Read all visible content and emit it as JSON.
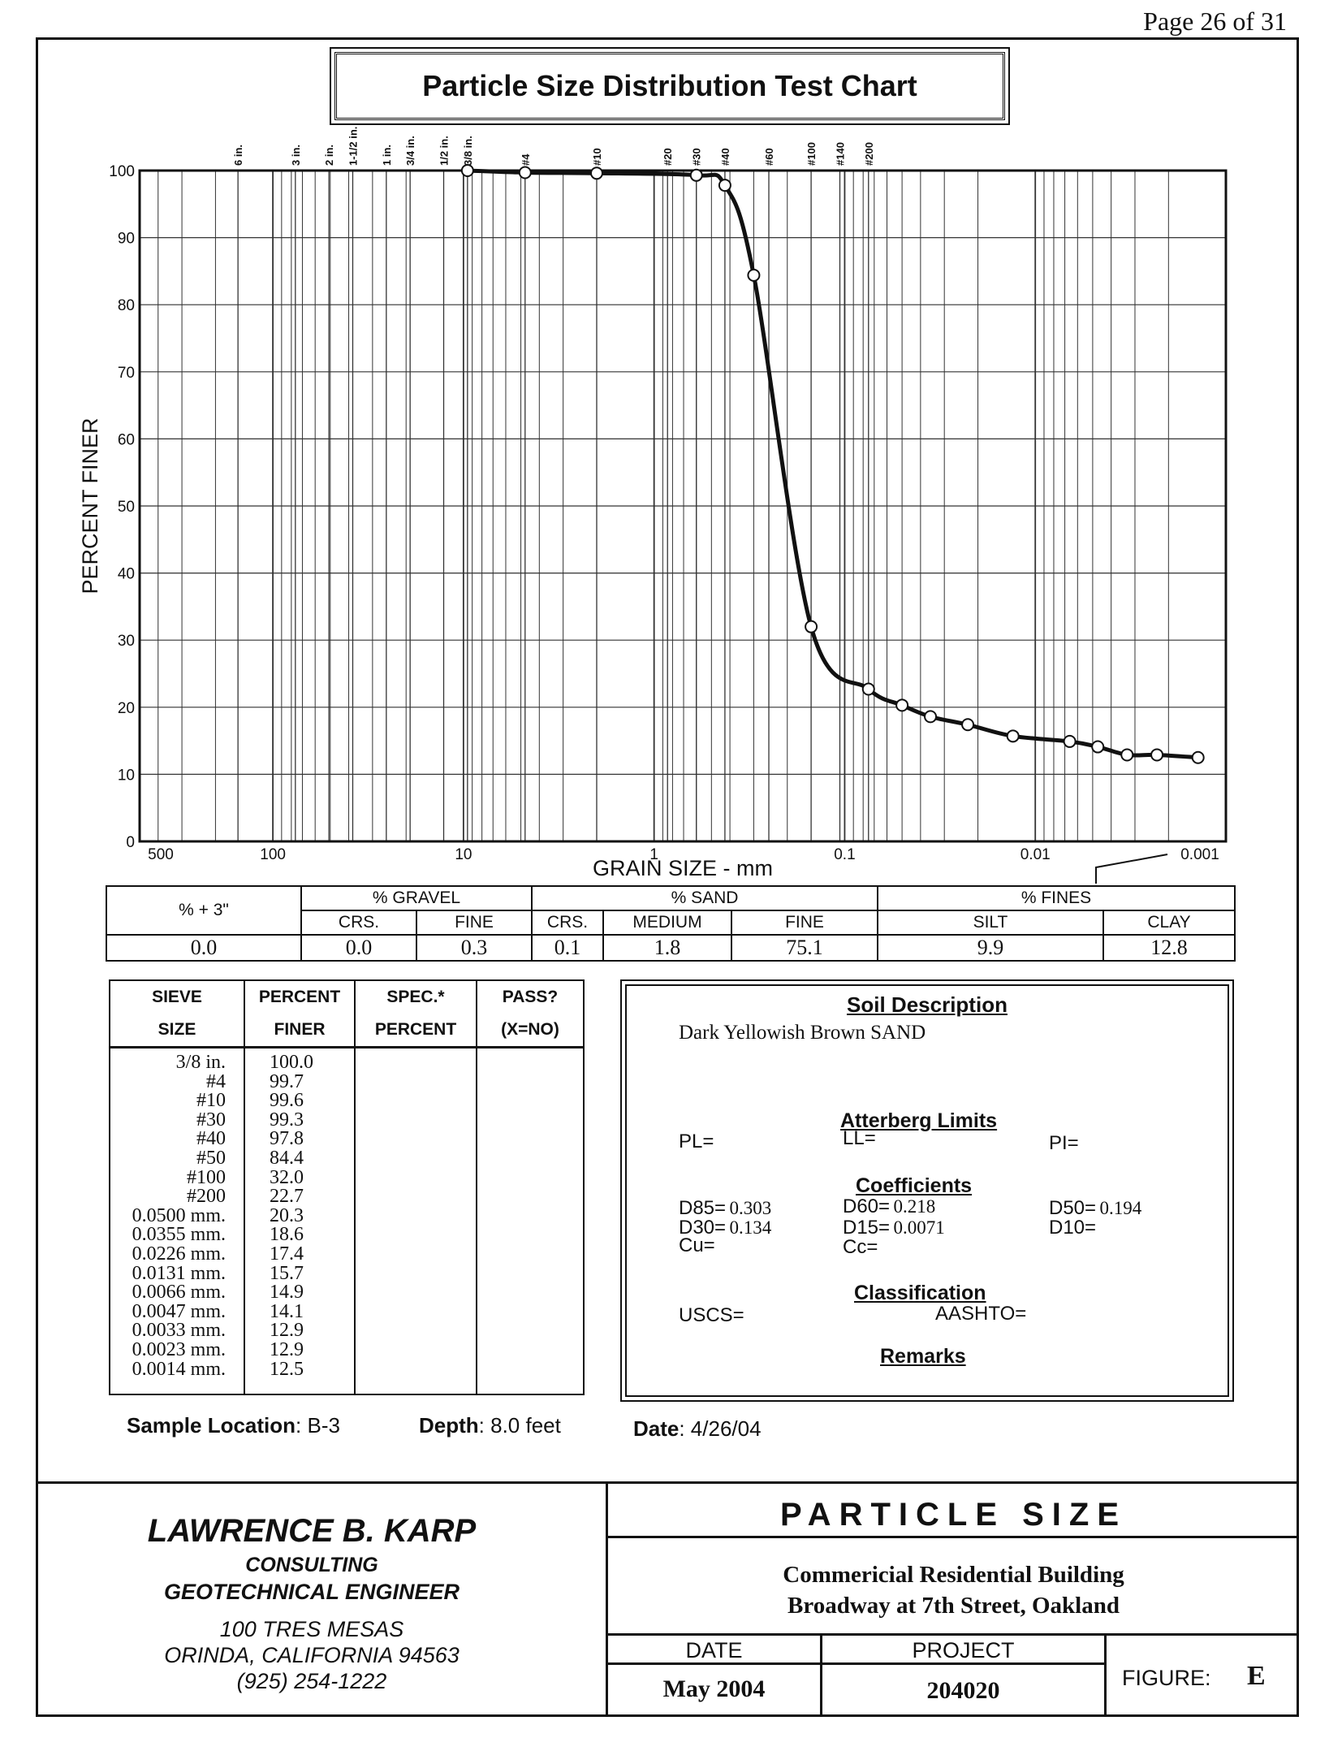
{
  "page": "Page 26 of 31",
  "chart_title": "Particle Size Distribution Test Chart",
  "chart_data": {
    "type": "line",
    "title": "Particle Size Distribution Test Chart",
    "xlabel": "GRAIN SIZE - mm",
    "ylabel": "PERCENT FINER",
    "x_scale": "log",
    "x_reversed": true,
    "xlim": [
      500,
      0.001
    ],
    "ylim": [
      0,
      100
    ],
    "x_tick_labels": [
      "500",
      "100",
      "10",
      "1",
      "0.1",
      "0.01",
      "0.001"
    ],
    "x_ticks": [
      500,
      100,
      10,
      1,
      0.1,
      0.01,
      0.001
    ],
    "y_ticks": [
      0,
      10,
      20,
      30,
      40,
      50,
      60,
      70,
      80,
      90,
      100
    ],
    "sieve_labels": [
      {
        "label": "6 in.",
        "x": 152.4
      },
      {
        "label": "3 in.",
        "x": 76.2
      },
      {
        "label": "2 in.",
        "x": 50.8
      },
      {
        "label": "1-1/2 in.",
        "x": 38.1
      },
      {
        "label": "1 in.",
        "x": 25.4
      },
      {
        "label": "3/4 in.",
        "x": 19.05
      },
      {
        "label": "1/2 in.",
        "x": 12.7
      },
      {
        "label": "3/8 in.",
        "x": 9.525
      },
      {
        "label": "#4",
        "x": 4.75
      },
      {
        "label": "#10",
        "x": 2.0
      },
      {
        "label": "#20",
        "x": 0.85
      },
      {
        "label": "#30",
        "x": 0.6
      },
      {
        "label": "#40",
        "x": 0.425
      },
      {
        "label": "#60",
        "x": 0.25
      },
      {
        "label": "#100",
        "x": 0.15
      },
      {
        "label": "#140",
        "x": 0.106
      },
      {
        "label": "#200",
        "x": 0.075
      }
    ],
    "series": [
      {
        "x": [
          9.525,
          4.75,
          2.0,
          0.6,
          0.425,
          0.3,
          0.15,
          0.075,
          0.05,
          0.0355,
          0.0226,
          0.0131,
          0.0066,
          0.0047,
          0.0033,
          0.0023,
          0.0014
        ],
        "y": [
          100.0,
          99.7,
          99.6,
          99.3,
          97.8,
          84.4,
          32.0,
          22.7,
          20.3,
          18.6,
          17.4,
          15.7,
          14.9,
          14.1,
          12.9,
          12.9,
          12.5
        ]
      }
    ]
  },
  "fractions": {
    "headers": {
      "plus3": "% + 3\"",
      "gravel": "% GRAVEL",
      "sand": "% SAND",
      "fines": "% FINES"
    },
    "sub": {
      "crs": "CRS.",
      "fine": "FINE",
      "crs2": "CRS.",
      "medium": "MEDIUM",
      "fine2": "FINE",
      "silt": "SILT",
      "clay": "CLAY"
    },
    "values": {
      "plus3": "0.0",
      "gravel_crs": "0.0",
      "gravel_fine": "0.3",
      "sand_crs": "0.1",
      "sand_medium": "1.8",
      "sand_fine": "75.1",
      "silt": "9.9",
      "clay": "12.8"
    }
  },
  "sieve_table": {
    "h1": [
      "SIEVE",
      "PERCENT",
      "SPEC.*",
      "PASS?"
    ],
    "h2": [
      "SIZE",
      "FINER",
      "PERCENT",
      "(X=NO)"
    ],
    "sizes": "3/8 in.\n#4\n#10\n#30\n#40\n#50\n#100\n#200\n0.0500 mm.\n0.0355 mm.\n0.0226 mm.\n0.0131 mm.\n0.0066 mm.\n0.0047 mm.\n0.0033 mm.\n0.0023 mm.\n0.0014 mm.",
    "finer": "100.0\n99.7\n99.6\n99.3\n97.8\n84.4\n32.0\n22.7\n20.3\n18.6\n17.4\n15.7\n14.9\n14.1\n12.9\n12.9\n12.5"
  },
  "soil": {
    "title": "Soil Description",
    "description": "Dark Yellowish Brown SAND",
    "atterberg_title": "Atterberg Limits",
    "pl": "PL=",
    "ll": "LL=",
    "pi": "PI=",
    "coefficients_title": "Coefficients",
    "d85_label": "D85=",
    "d85": "0.303",
    "d60_label": "D60=",
    "d60": "0.218",
    "d50_label": "D50=",
    "d50": "0.194",
    "d30_label": "D30=",
    "d30": "0.134",
    "d15_label": "D15=",
    "d15": "0.0071",
    "d10_label": "D10=",
    "cu_label": "Cu=",
    "cc_label": "Cc=",
    "classification_title": "Classification",
    "uscs": "USCS=",
    "aashto": "AASHTO=",
    "remarks_title": "Remarks"
  },
  "sample": {
    "location_label": "Sample Location",
    "location": ": B-3",
    "depth_label": "Depth",
    "depth": ": 8.0 feet",
    "date_label": "Date",
    "date": ": 4/26/04"
  },
  "footer": {
    "company": "LAWRENCE B. KARP",
    "line1": "CONSULTING",
    "line2": "GEOTECHNICAL ENGINEER",
    "addr1": "100 TRES MESAS",
    "addr2": "ORINDA, CALIFORNIA 94563",
    "phone": "(925) 254-1222",
    "heading": "PARTICLE SIZE",
    "project_name1": "Commericial Residential Building",
    "project_name2": "Broadway at 7th Street, Oakland",
    "date_label": "DATE",
    "date": "May 2004",
    "project_label": "PROJECT",
    "project": "204020",
    "figure_label": "FIGURE:",
    "figure": "E"
  }
}
